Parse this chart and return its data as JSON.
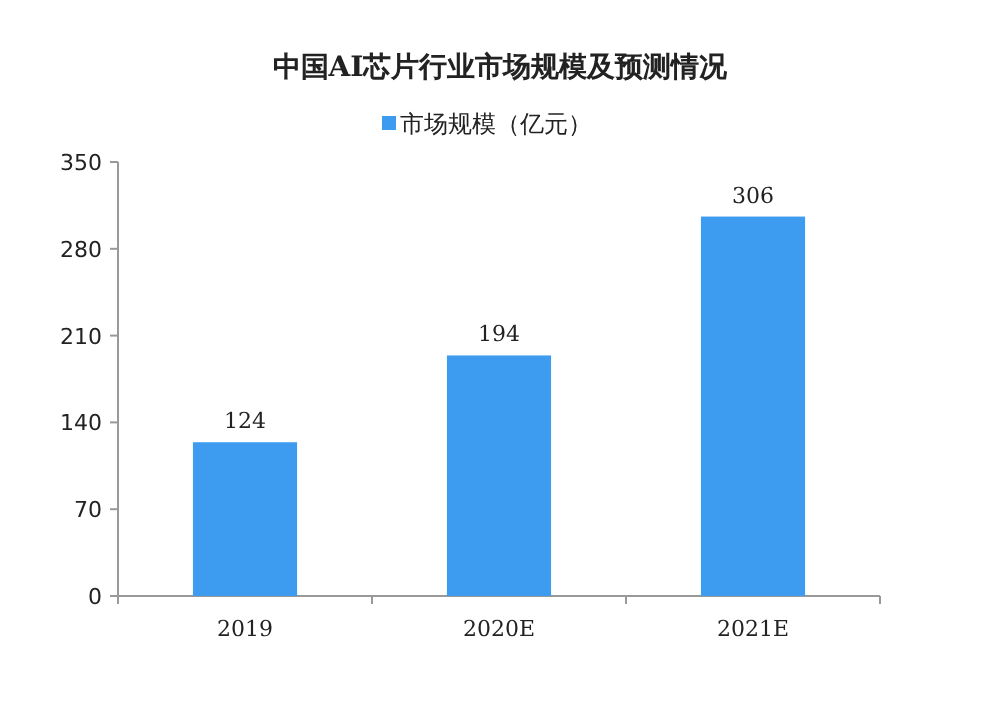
{
  "chart_data": {
    "type": "bar",
    "title": "中国AI芯片行业市场规模及预测情况",
    "categories": [
      "2019",
      "2020E",
      "2021E"
    ],
    "series": [
      {
        "name": "市场规模（亿元）",
        "color": "#3d9cf0",
        "values": [
          124,
          194,
          306
        ]
      }
    ],
    "ylim": [
      0,
      350
    ],
    "yticks": [
      0,
      70,
      140,
      210,
      280,
      350
    ],
    "data_labels": true,
    "legend": "top",
    "grid": false
  }
}
